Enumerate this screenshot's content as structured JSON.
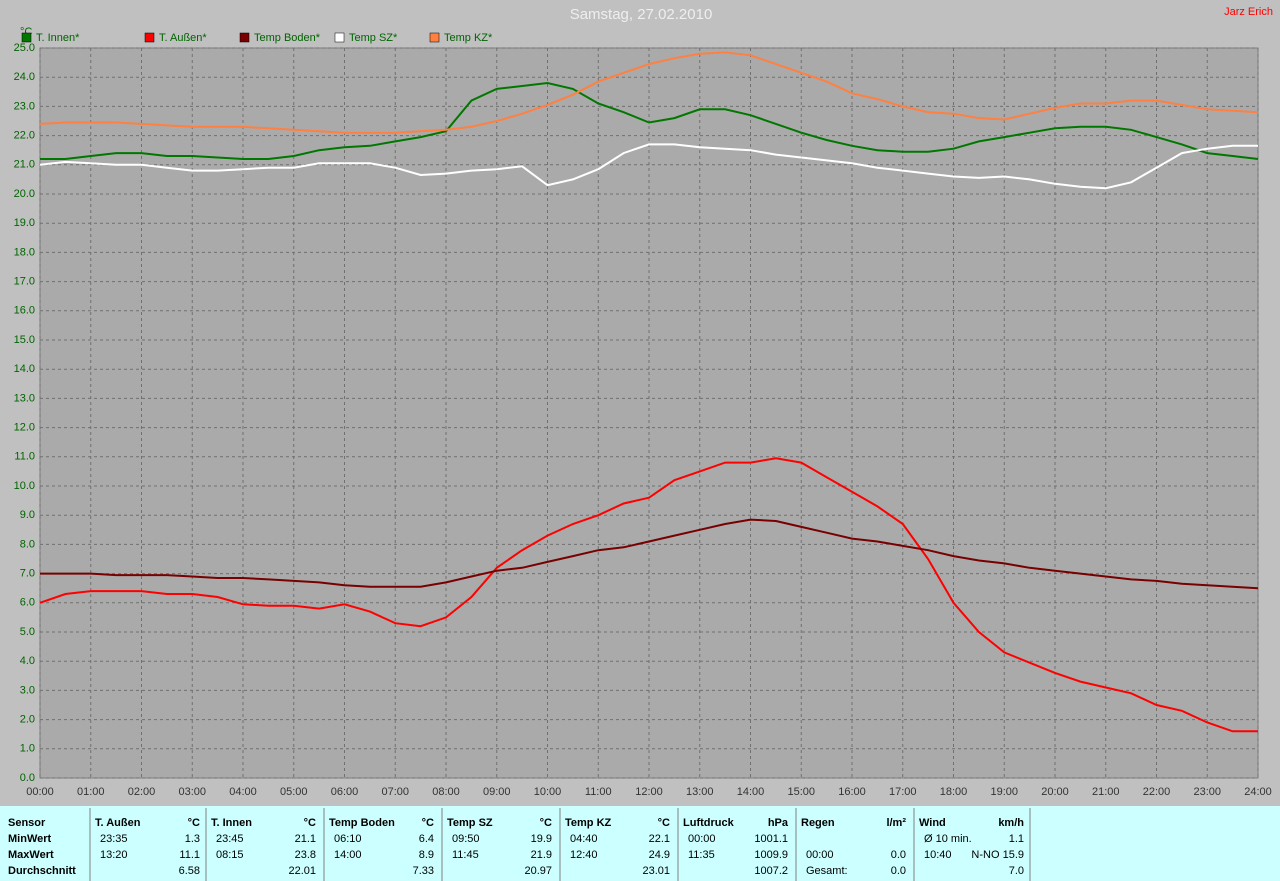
{
  "chart_data": {
    "type": "line",
    "title": "Samstag, 27.02.2010",
    "author": "Jarz Erich",
    "y_label": "°C",
    "x": [
      0,
      0.5,
      1,
      1.5,
      2,
      2.5,
      3,
      3.5,
      4,
      4.5,
      5,
      5.5,
      6,
      6.5,
      7,
      7.5,
      8,
      8.5,
      9,
      9.5,
      10,
      10.5,
      11,
      11.5,
      12,
      12.5,
      13,
      13.5,
      14,
      14.5,
      15,
      15.5,
      16,
      16.5,
      17,
      17.5,
      18,
      18.5,
      19,
      19.5,
      20,
      20.5,
      21,
      21.5,
      22,
      22.5,
      23,
      23.5,
      24
    ],
    "xlim": [
      0,
      24
    ],
    "xticks": [
      {
        "value": 0,
        "label": "00:00"
      },
      {
        "value": 1,
        "label": "01:00"
      },
      {
        "value": 2,
        "label": "02:00"
      },
      {
        "value": 3,
        "label": "03:00"
      },
      {
        "value": 4,
        "label": "04:00"
      },
      {
        "value": 5,
        "label": "05:00"
      },
      {
        "value": 6,
        "label": "06:00"
      },
      {
        "value": 7,
        "label": "07:00"
      },
      {
        "value": 8,
        "label": "08:00"
      },
      {
        "value": 9,
        "label": "09:00"
      },
      {
        "value": 10,
        "label": "10:00"
      },
      {
        "value": 11,
        "label": "11:00"
      },
      {
        "value": 12,
        "label": "12:00"
      },
      {
        "value": 13,
        "label": "13:00"
      },
      {
        "value": 14,
        "label": "14:00"
      },
      {
        "value": 15,
        "label": "15:00"
      },
      {
        "value": 16,
        "label": "16:00"
      },
      {
        "value": 17,
        "label": "17:00"
      },
      {
        "value": 18,
        "label": "18:00"
      },
      {
        "value": 19,
        "label": "19:00"
      },
      {
        "value": 20,
        "label": "20:00"
      },
      {
        "value": 21,
        "label": "21:00"
      },
      {
        "value": 22,
        "label": "22:00"
      },
      {
        "value": 23,
        "label": "23:00"
      },
      {
        "value": 24,
        "label": "24:00"
      }
    ],
    "ylim": [
      0,
      25
    ],
    "yticks": [
      {
        "value": 0,
        "label": "0.0"
      },
      {
        "value": 1,
        "label": "1.0"
      },
      {
        "value": 2,
        "label": "2.0"
      },
      {
        "value": 3,
        "label": "3.0"
      },
      {
        "value": 4,
        "label": "4.0"
      },
      {
        "value": 5,
        "label": "5.0"
      },
      {
        "value": 6,
        "label": "6.0"
      },
      {
        "value": 7,
        "label": "7.0"
      },
      {
        "value": 8,
        "label": "8.0"
      },
      {
        "value": 9,
        "label": "9.0"
      },
      {
        "value": 10,
        "label": "10.0"
      },
      {
        "value": 11,
        "label": "11.0"
      },
      {
        "value": 12,
        "label": "12.0"
      },
      {
        "value": 13,
        "label": "13.0"
      },
      {
        "value": 14,
        "label": "14.0"
      },
      {
        "value": 15,
        "label": "15.0"
      },
      {
        "value": 16,
        "label": "16.0"
      },
      {
        "value": 17,
        "label": "17.0"
      },
      {
        "value": 18,
        "label": "18.0"
      },
      {
        "value": 19,
        "label": "19.0"
      },
      {
        "value": 20,
        "label": "20.0"
      },
      {
        "value": 21,
        "label": "21.0"
      },
      {
        "value": 22,
        "label": "22.0"
      },
      {
        "value": 23,
        "label": "23.0"
      },
      {
        "value": 24,
        "label": "24.0"
      },
      {
        "value": 25,
        "label": "25.0"
      }
    ],
    "grid": true,
    "series": [
      {
        "name": "T. Innen*",
        "color": "#007800",
        "values": [
          21.2,
          21.2,
          21.3,
          21.4,
          21.4,
          21.3,
          21.3,
          21.25,
          21.2,
          21.2,
          21.3,
          21.5,
          21.6,
          21.65,
          21.8,
          21.95,
          22.15,
          23.2,
          23.6,
          23.7,
          23.8,
          23.6,
          23.1,
          22.8,
          22.45,
          22.6,
          22.9,
          22.9,
          22.7,
          22.4,
          22.1,
          21.85,
          21.65,
          21.5,
          21.45,
          21.45,
          21.55,
          21.8,
          21.95,
          22.1,
          22.25,
          22.3,
          22.3,
          22.2,
          21.95,
          21.7,
          21.4,
          21.3,
          21.2
        ]
      },
      {
        "name": "T. Außen*",
        "color": "#ff0000",
        "values": [
          6.0,
          6.3,
          6.4,
          6.4,
          6.4,
          6.3,
          6.3,
          6.2,
          5.95,
          5.9,
          5.9,
          5.8,
          5.95,
          5.7,
          5.3,
          5.2,
          5.5,
          6.2,
          7.2,
          7.8,
          8.3,
          8.7,
          9.0,
          9.4,
          9.6,
          10.2,
          10.5,
          10.8,
          10.8,
          10.95,
          10.8,
          10.3,
          9.8,
          9.3,
          8.7,
          7.5,
          6.0,
          5.0,
          4.3,
          3.95,
          3.6,
          3.3,
          3.1,
          2.9,
          2.5,
          2.3,
          1.9,
          1.6,
          1.6
        ]
      },
      {
        "name": "Temp Boden*",
        "color": "#780000",
        "values": [
          7.0,
          7.0,
          7.0,
          6.95,
          6.95,
          6.95,
          6.9,
          6.85,
          6.85,
          6.8,
          6.75,
          6.7,
          6.6,
          6.55,
          6.55,
          6.55,
          6.7,
          6.9,
          7.1,
          7.2,
          7.4,
          7.6,
          7.8,
          7.9,
          8.1,
          8.3,
          8.5,
          8.7,
          8.85,
          8.8,
          8.6,
          8.4,
          8.2,
          8.1,
          7.95,
          7.8,
          7.6,
          7.45,
          7.35,
          7.2,
          7.1,
          7.0,
          6.9,
          6.8,
          6.75,
          6.65,
          6.6,
          6.55,
          6.5
        ]
      },
      {
        "name": "Temp SZ*",
        "color": "#ffffff",
        "values": [
          21.0,
          21.1,
          21.05,
          21.0,
          21.0,
          20.9,
          20.8,
          20.8,
          20.85,
          20.9,
          20.9,
          21.05,
          21.05,
          21.05,
          20.9,
          20.65,
          20.7,
          20.8,
          20.85,
          20.95,
          20.3,
          20.5,
          20.85,
          21.4,
          21.7,
          21.7,
          21.6,
          21.55,
          21.5,
          21.35,
          21.25,
          21.15,
          21.05,
          20.9,
          20.8,
          20.7,
          20.6,
          20.55,
          20.6,
          20.5,
          20.35,
          20.25,
          20.2,
          20.4,
          20.9,
          21.4,
          21.55,
          21.65,
          21.65
        ]
      },
      {
        "name": "Temp KZ*",
        "color": "#ff8040",
        "values": [
          22.4,
          22.45,
          22.45,
          22.45,
          22.4,
          22.35,
          22.3,
          22.3,
          22.3,
          22.25,
          22.2,
          22.15,
          22.1,
          22.1,
          22.1,
          22.15,
          22.2,
          22.3,
          22.5,
          22.75,
          23.05,
          23.4,
          23.85,
          24.15,
          24.45,
          24.65,
          24.8,
          24.85,
          24.75,
          24.45,
          24.15,
          23.85,
          23.45,
          23.25,
          23.0,
          22.8,
          22.75,
          22.6,
          22.55,
          22.75,
          22.95,
          23.1,
          23.1,
          23.2,
          23.2,
          23.05,
          22.9,
          22.85,
          22.8
        ]
      }
    ]
  },
  "stats_table": {
    "row_labels": [
      "Sensor",
      "MinWert",
      "MaxWert",
      "Durchschnitt"
    ],
    "groups": [
      {
        "name": "T. Außen",
        "unit": "°C",
        "rows": [
          {
            "left": "23:35",
            "right": "1.3"
          },
          {
            "left": "13:20",
            "right": "11.1"
          },
          {
            "right": "6.58"
          }
        ]
      },
      {
        "name": "T. Innen",
        "unit": "°C",
        "rows": [
          {
            "left": "23:45",
            "right": "21.1"
          },
          {
            "left": "08:15",
            "right": "23.8"
          },
          {
            "right": "22.01"
          }
        ]
      },
      {
        "name": "Temp Boden",
        "unit": "°C",
        "rows": [
          {
            "left": "06:10",
            "right": "6.4"
          },
          {
            "left": "14:00",
            "right": "8.9"
          },
          {
            "right": "7.33"
          }
        ]
      },
      {
        "name": "Temp SZ",
        "unit": "°C",
        "rows": [
          {
            "left": "09:50",
            "right": "19.9"
          },
          {
            "left": "11:45",
            "right": "21.9"
          },
          {
            "right": "20.97"
          }
        ]
      },
      {
        "name": "Temp KZ",
        "unit": "°C",
        "rows": [
          {
            "left": "04:40",
            "right": "22.1"
          },
          {
            "left": "12:40",
            "right": "24.9"
          },
          {
            "right": "23.01"
          }
        ]
      },
      {
        "name": "Luftdruck",
        "unit": "hPa",
        "rows": [
          {
            "left": "00:00",
            "right": "1001.1"
          },
          {
            "left": "11:35",
            "right": "1009.9"
          },
          {
            "right": "1007.2"
          }
        ]
      },
      {
        "name": "Regen",
        "unit": "l/m²",
        "rows": [
          null,
          {
            "left": "00:00",
            "right": "0.0"
          },
          {
            "left": "Gesamt:",
            "right": "0.0"
          }
        ]
      },
      {
        "name": "Wind",
        "unit": "km/h",
        "rows": [
          {
            "left": "Ø 10 min.",
            "right": "1.1"
          },
          {
            "left": "10:40",
            "right": "N-NO 15.9"
          },
          {
            "right": "7.0"
          }
        ]
      }
    ]
  }
}
